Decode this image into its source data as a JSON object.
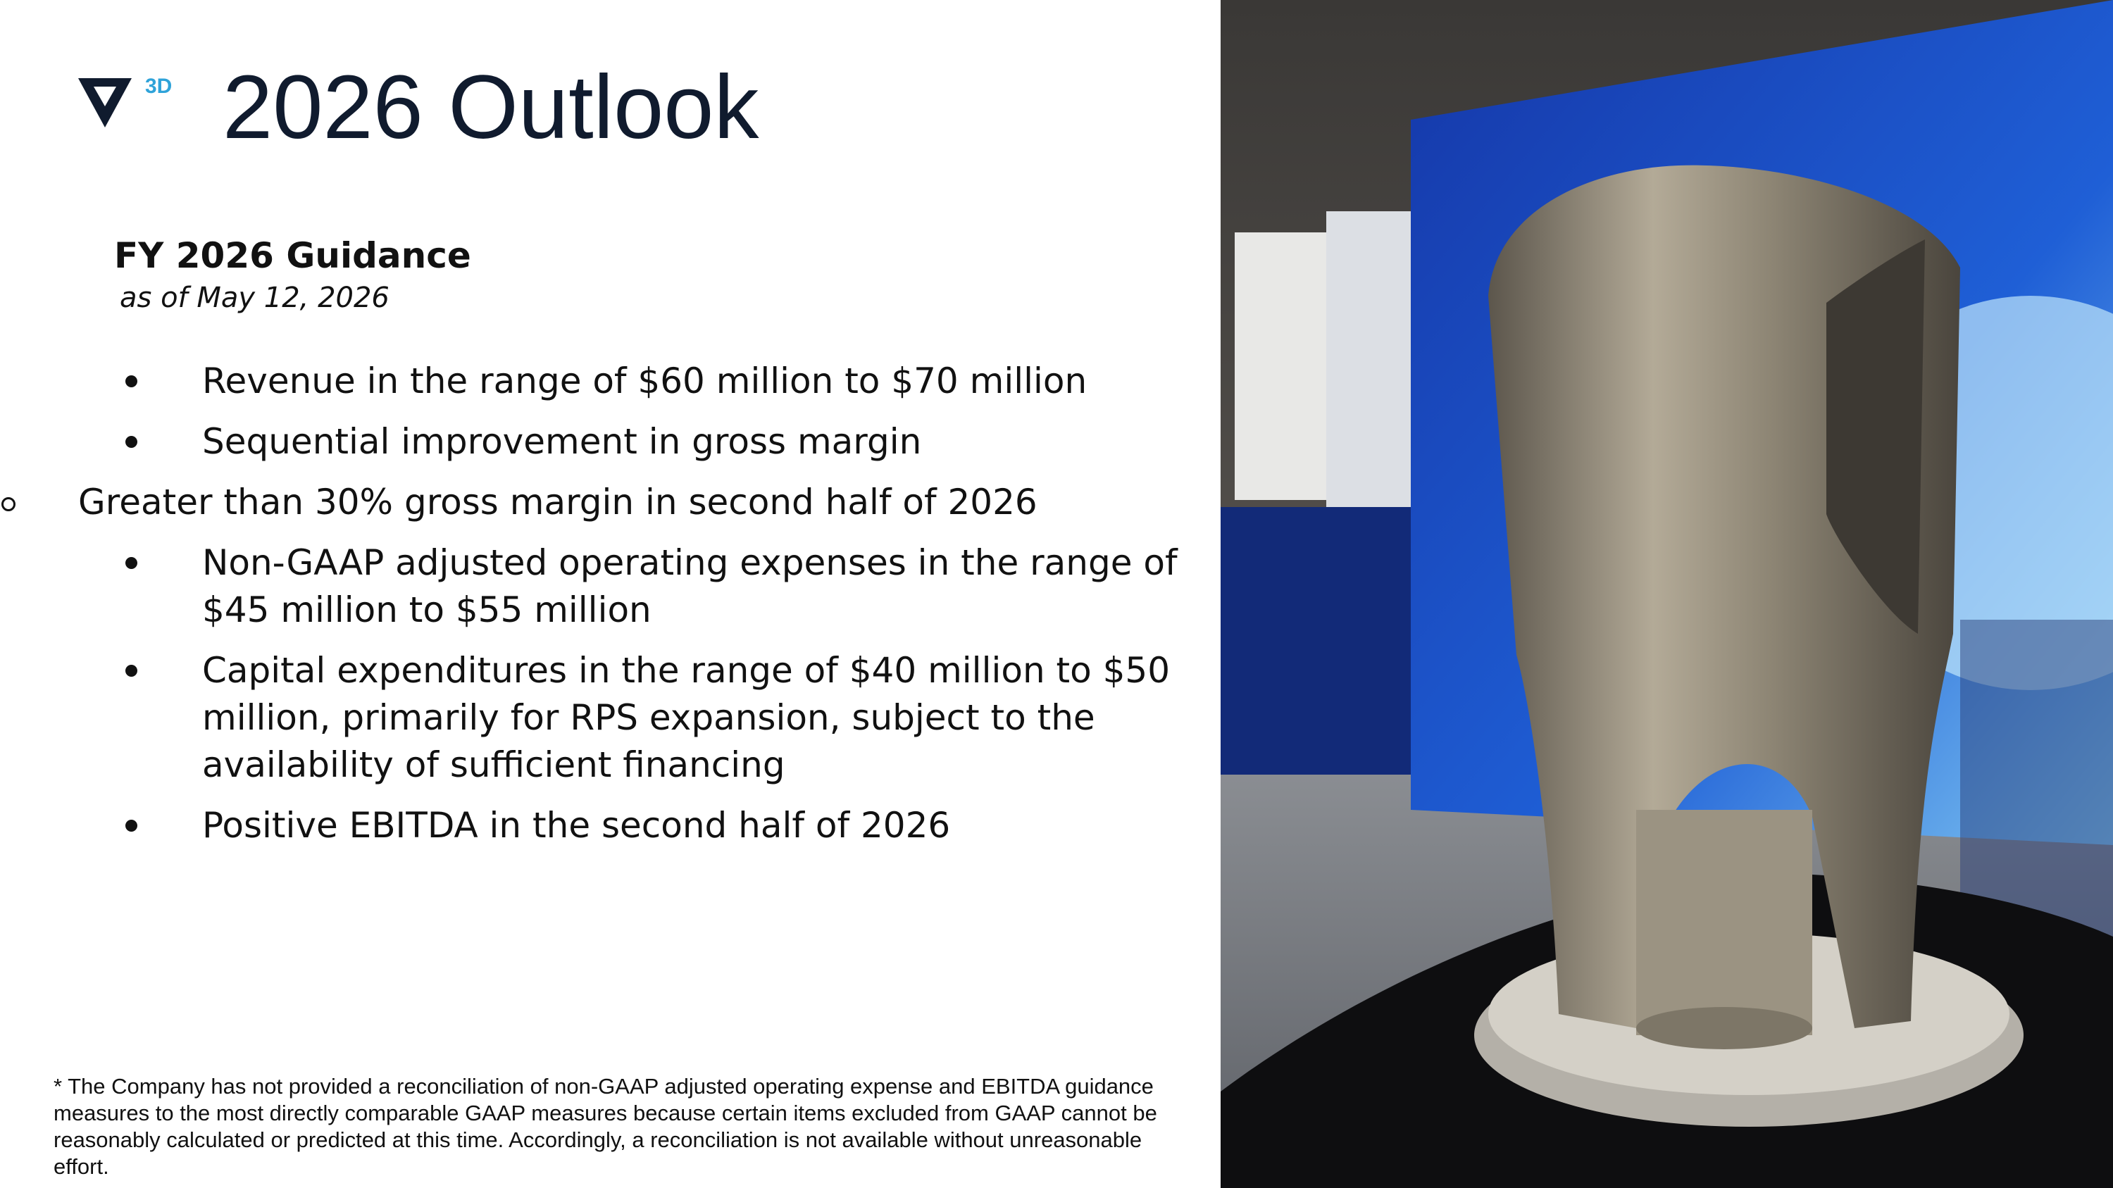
{
  "header": {
    "title": "2026 Outlook",
    "logo_text": "3D"
  },
  "guidance": {
    "heading": "FY 2026 Guidance",
    "date": "as of May 12, 2026",
    "items": [
      {
        "text": "Revenue in the range of $60 million to $70 million"
      },
      {
        "text": "Sequential improvement in gross margin",
        "subitems": [
          "Greater than 30% gross margin in second half of 2026"
        ]
      },
      {
        "text": "Non-GAAP adjusted operating expenses in the range of $45 million to $55 million"
      },
      {
        "text": "Capital expenditures in the range of $40 million to $50 million, primarily for RPS expansion, subject to the availability of sufficient financing"
      },
      {
        "text": "Positive EBITDA in the second half of 2026"
      }
    ]
  },
  "footnote": "* The Company has not provided a reconciliation of non-GAAP adjusted operating expense and EBITDA guidance measures to the most directly comparable GAAP measures because certain items excluded from GAAP cannot be reasonably calculated or predicted at this time. Accordingly, a reconciliation is not available without unreasonable effort."
}
